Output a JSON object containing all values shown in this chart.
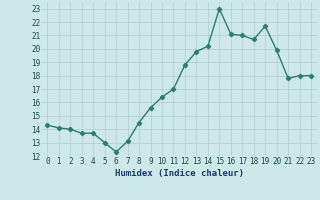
{
  "x": [
    0,
    1,
    2,
    3,
    4,
    5,
    6,
    7,
    8,
    9,
    10,
    11,
    12,
    13,
    14,
    15,
    16,
    17,
    18,
    19,
    20,
    21,
    22,
    23
  ],
  "y": [
    14.3,
    14.1,
    14.0,
    13.7,
    13.7,
    13.0,
    12.3,
    13.1,
    14.5,
    15.6,
    16.4,
    17.0,
    18.8,
    19.8,
    20.2,
    23.0,
    21.1,
    21.0,
    20.7,
    21.7,
    19.9,
    17.8,
    18.0,
    18.0
  ],
  "xlabel": "Humidex (Indice chaleur)",
  "line_color": "#2e7d6e",
  "marker": "D",
  "marker_size": 2.2,
  "line_width": 1.0,
  "bg_color": "#cce8e8",
  "grid_color": "#aecece",
  "tick_label_color": "#1a4a4a",
  "xlabel_color": "#1a3a6a",
  "ylim": [
    12,
    23.5
  ],
  "yticks": [
    12,
    13,
    14,
    15,
    16,
    17,
    18,
    19,
    20,
    21,
    22,
    23
  ],
  "xticks": [
    0,
    1,
    2,
    3,
    4,
    5,
    6,
    7,
    8,
    9,
    10,
    11,
    12,
    13,
    14,
    15,
    16,
    17,
    18,
    19,
    20,
    21,
    22,
    23
  ],
  "tick_fontsize": 5.5,
  "xlabel_fontsize": 6.5
}
